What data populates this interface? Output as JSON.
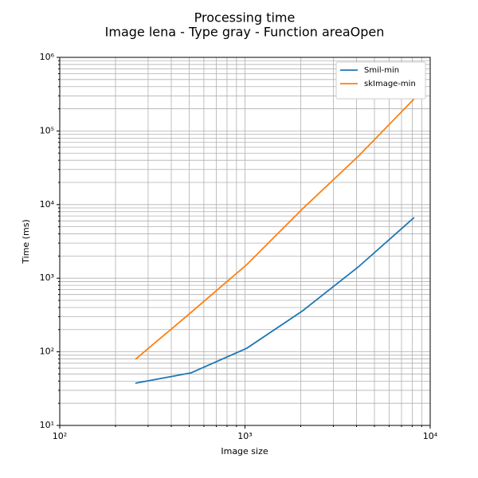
{
  "chart_data": {
    "type": "line",
    "title": "Processing time",
    "subtitle": "Image lena - Type gray - Function areaOpen",
    "xlabel": "Image size",
    "ylabel": "Time (ms)",
    "xscale": "log",
    "yscale": "log",
    "grid": true,
    "legend": "upper right",
    "x": [
      256,
      512,
      1024,
      2048,
      4096,
      8192
    ],
    "series": [
      {
        "name": "Smil-min",
        "color": "#1f77b4",
        "values": [
          37.5,
          51.8,
          112,
          361,
          1425,
          6680
        ]
      },
      {
        "name": "skImage-min",
        "color": "#ff7f0e",
        "values": [
          79,
          344,
          1535,
          8790,
          45500,
          273000
        ]
      }
    ],
    "xlim": [
      100,
      10000
    ],
    "xticks": [
      {
        "value": 100,
        "label": "10²"
      },
      {
        "value": 1000,
        "label": "10³"
      },
      {
        "value": 10000,
        "label": "10⁴"
      }
    ],
    "xminor": [
      200,
      300,
      400,
      500,
      600,
      700,
      800,
      900,
      2000,
      3000,
      4000,
      5000,
      6000,
      7000,
      8000,
      9000
    ],
    "ylim": [
      10,
      1000000
    ],
    "yticks": [
      {
        "value": 10,
        "label": "10¹"
      },
      {
        "value": 100,
        "label": "10²"
      },
      {
        "value": 1000,
        "label": "10³"
      },
      {
        "value": 10000,
        "label": "10⁴"
      },
      {
        "value": 100000,
        "label": "10⁵"
      },
      {
        "value": 1000000,
        "label": "10⁶"
      }
    ],
    "yminor": [
      20,
      30,
      40,
      50,
      60,
      70,
      80,
      90,
      200,
      300,
      400,
      500,
      600,
      700,
      800,
      900,
      2000,
      3000,
      4000,
      5000,
      6000,
      7000,
      8000,
      9000,
      20000,
      30000,
      40000,
      50000,
      60000,
      70000,
      80000,
      90000,
      200000,
      300000,
      400000,
      500000,
      600000,
      700000,
      800000,
      900000
    ]
  }
}
